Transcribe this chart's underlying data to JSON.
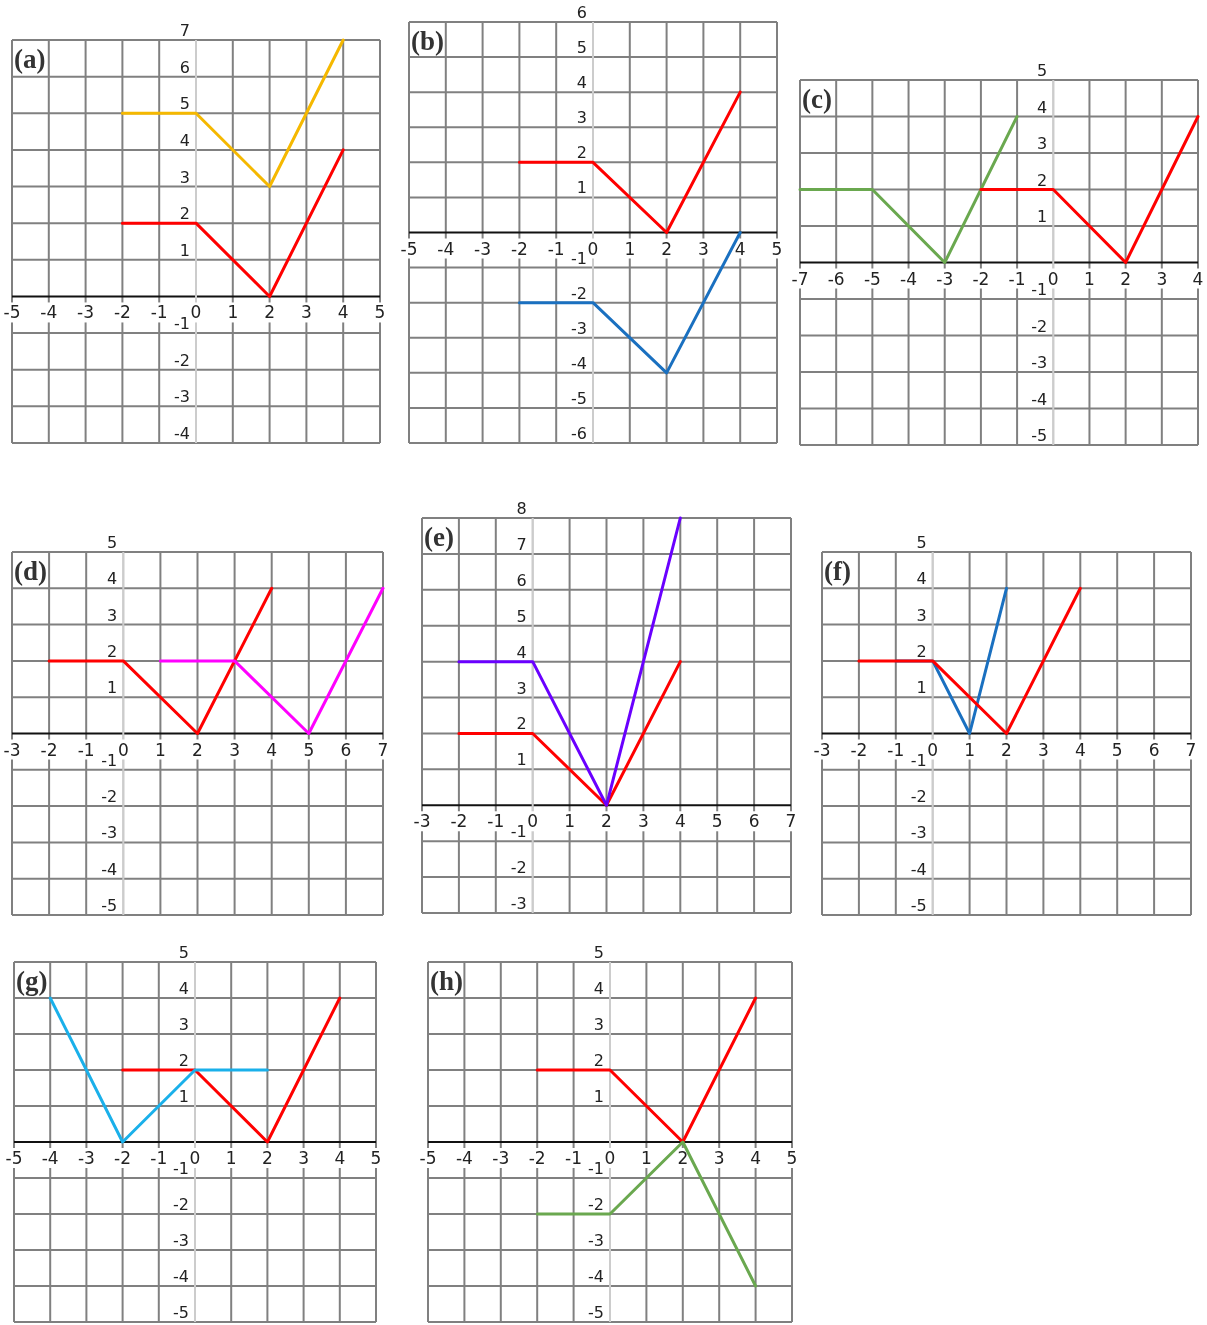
{
  "chart_data": [
    {
      "type": "line",
      "title": "(a)",
      "xlim": [
        -5,
        5
      ],
      "ylim": [
        -4,
        7
      ],
      "xticks": [
        -5,
        -4,
        -3,
        -2,
        -1,
        0,
        1,
        2,
        3,
        4,
        5
      ],
      "yticks": [
        -4,
        -3,
        -2,
        -1,
        1,
        2,
        3,
        4,
        5,
        6,
        7
      ],
      "grid": true,
      "series": [
        {
          "color": "#f5b800",
          "x": [
            -2,
            0,
            2,
            4
          ],
          "values": [
            5,
            5,
            3,
            7
          ]
        },
        {
          "color": "#ff0000",
          "x": [
            -2,
            0,
            2,
            4
          ],
          "values": [
            2,
            2,
            0,
            4
          ]
        }
      ]
    },
    {
      "type": "line",
      "title": "(b)",
      "xlim": [
        -5,
        5
      ],
      "ylim": [
        -6,
        6
      ],
      "xticks": [
        -5,
        -4,
        -3,
        -2,
        -1,
        0,
        1,
        2,
        3,
        4,
        5
      ],
      "yticks": [
        -6,
        -5,
        -4,
        -3,
        -2,
        -1,
        1,
        2,
        3,
        4,
        5,
        6
      ],
      "grid": true,
      "series": [
        {
          "color": "#ff0000",
          "x": [
            -2,
            0,
            2,
            4
          ],
          "values": [
            2,
            2,
            0,
            4
          ]
        },
        {
          "color": "#1a70c0",
          "x": [
            -2,
            0,
            2,
            4
          ],
          "values": [
            -2,
            -2,
            -4,
            0
          ]
        }
      ]
    },
    {
      "type": "line",
      "title": "(c)",
      "xlim": [
        -7,
        4
      ],
      "ylim": [
        -5,
        5
      ],
      "xticks": [
        -7,
        -6,
        -5,
        -4,
        -3,
        -2,
        -1,
        0,
        1,
        2,
        3,
        4
      ],
      "yticks": [
        -5,
        -4,
        -3,
        -2,
        -1,
        1,
        2,
        3,
        4,
        5
      ],
      "grid": true,
      "series": [
        {
          "color": "#6aa84f",
          "x": [
            -7,
            -5,
            -3,
            -1
          ],
          "values": [
            2,
            2,
            0,
            4
          ]
        },
        {
          "color": "#ff0000",
          "x": [
            -2,
            0,
            2,
            4
          ],
          "values": [
            2,
            2,
            0,
            4
          ]
        }
      ]
    },
    {
      "type": "line",
      "title": "(d)",
      "xlim": [
        -3,
        7
      ],
      "ylim": [
        -5,
        5
      ],
      "xticks": [
        -3,
        -2,
        -1,
        0,
        1,
        2,
        3,
        4,
        5,
        6,
        7
      ],
      "yticks": [
        -5,
        -4,
        -3,
        -2,
        -1,
        1,
        2,
        3,
        4,
        5
      ],
      "grid": true,
      "series": [
        {
          "color": "#ff0000",
          "x": [
            -2,
            0,
            2,
            4
          ],
          "values": [
            2,
            2,
            0,
            4
          ]
        },
        {
          "color": "#ff00ff",
          "x": [
            1,
            3,
            5,
            7
          ],
          "values": [
            2,
            2,
            0,
            4
          ]
        }
      ]
    },
    {
      "type": "line",
      "title": "(e)",
      "xlim": [
        -3,
        7
      ],
      "ylim": [
        -3,
        8
      ],
      "xticks": [
        -3,
        -2,
        -1,
        0,
        1,
        2,
        3,
        4,
        5,
        6,
        7
      ],
      "yticks": [
        -3,
        -2,
        -1,
        1,
        2,
        3,
        4,
        5,
        6,
        7,
        8
      ],
      "grid": true,
      "series": [
        {
          "color": "#ff0000",
          "x": [
            -2,
            0,
            2,
            4
          ],
          "values": [
            2,
            2,
            0,
            4
          ]
        },
        {
          "color": "#6a00ff",
          "x": [
            -2,
            0,
            2,
            4
          ],
          "values": [
            4,
            4,
            0,
            8
          ]
        }
      ]
    },
    {
      "type": "line",
      "title": "(f)",
      "xlim": [
        -3,
        7
      ],
      "ylim": [
        -5,
        5
      ],
      "xticks": [
        -3,
        -2,
        -1,
        0,
        1,
        2,
        3,
        4,
        5,
        6,
        7
      ],
      "yticks": [
        -5,
        -4,
        -3,
        -2,
        -1,
        1,
        2,
        3,
        4,
        5
      ],
      "grid": true,
      "series": [
        {
          "color": "#1a70c0",
          "x": [
            -1,
            0,
            1,
            2
          ],
          "values": [
            2,
            2,
            0,
            4
          ]
        },
        {
          "color": "#ff0000",
          "x": [
            -2,
            0,
            2,
            4
          ],
          "values": [
            2,
            2,
            0,
            4
          ]
        }
      ]
    },
    {
      "type": "line",
      "title": "(g)",
      "xlim": [
        -5,
        5
      ],
      "ylim": [
        -5,
        5
      ],
      "xticks": [
        -5,
        -4,
        -3,
        -2,
        -1,
        0,
        1,
        2,
        3,
        4,
        5
      ],
      "yticks": [
        -5,
        -4,
        -3,
        -2,
        -1,
        1,
        2,
        3,
        4,
        5
      ],
      "grid": true,
      "series": [
        {
          "color": "#ff0000",
          "x": [
            -2,
            0,
            2,
            4
          ],
          "values": [
            2,
            2,
            0,
            4
          ]
        },
        {
          "color": "#1ab0ea",
          "x": [
            -4,
            -2,
            0,
            2
          ],
          "values": [
            4,
            0,
            2,
            2
          ]
        }
      ]
    },
    {
      "type": "line",
      "title": "(h)",
      "xlim": [
        -5,
        5
      ],
      "ylim": [
        -5,
        5
      ],
      "xticks": [
        -5,
        -4,
        -3,
        -2,
        -1,
        0,
        1,
        2,
        3,
        4,
        5
      ],
      "yticks": [
        -5,
        -4,
        -3,
        -2,
        -1,
        1,
        2,
        3,
        4,
        5
      ],
      "grid": true,
      "series": [
        {
          "color": "#ff0000",
          "x": [
            -2,
            0,
            2,
            4
          ],
          "values": [
            2,
            2,
            0,
            4
          ]
        },
        {
          "color": "#6aa84f",
          "x": [
            -2,
            0,
            2,
            4
          ],
          "values": [
            -2,
            -2,
            0,
            -4
          ]
        }
      ]
    }
  ]
}
